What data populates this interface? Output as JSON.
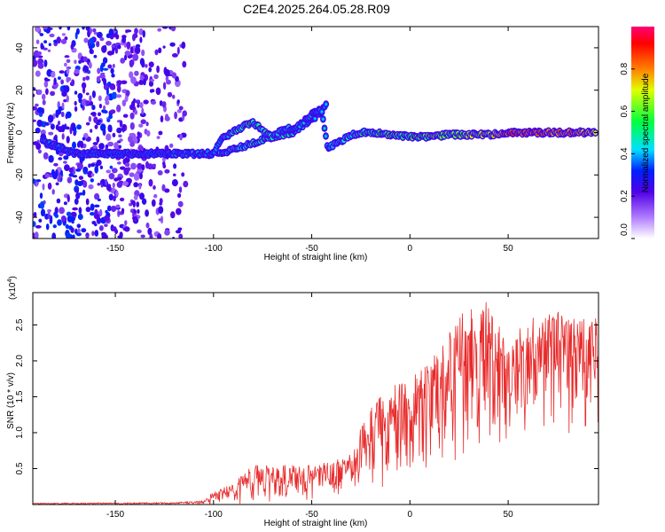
{
  "title": "C2E4.2025.264.05.28.R09",
  "chart_data": [
    {
      "type": "heatmap",
      "xlabel": "Height of straight line (km)",
      "ylabel": "Frequency (Hz)",
      "xlim": [
        -192,
        96
      ],
      "ylim": [
        -50,
        50
      ],
      "xticks": [
        -150,
        -100,
        -50,
        0,
        50
      ],
      "yticks": [
        -40,
        -20,
        0,
        20,
        40
      ],
      "colorbar": {
        "label": "Normalized spectral amplitude",
        "range": [
          0,
          1
        ],
        "ticks": [
          "0.0",
          "0.2",
          "0.4",
          "0.6",
          "0.8"
        ],
        "tick_values": [
          0,
          0.2,
          0.4,
          0.6,
          0.8
        ]
      },
      "ridge": {
        "x": [
          -187,
          -170,
          -160,
          -150,
          -140,
          -130,
          -120,
          -110,
          -100,
          -95,
          -90,
          -85,
          -80,
          -75,
          -70,
          -65,
          -60,
          -55,
          -50,
          -45,
          -42,
          -35,
          -30,
          -25,
          -20,
          -10,
          0,
          10,
          20,
          30,
          40,
          50,
          60,
          70,
          80,
          95
        ],
        "y": [
          -4,
          -10,
          -10,
          -10,
          -10,
          -10,
          -10,
          -10,
          -10,
          -2,
          0,
          3,
          5,
          1,
          -2,
          1,
          2,
          4,
          9,
          11,
          -7,
          -4,
          -1,
          0,
          0,
          -1,
          -2,
          -2,
          -1,
          -1,
          -1,
          0,
          0,
          0,
          0,
          0
        ],
        "amplitude": [
          0.45,
          0.35,
          0.35,
          0.35,
          0.3,
          0.3,
          0.4,
          0.45,
          0.4,
          0.5,
          0.55,
          0.6,
          0.6,
          0.55,
          0.55,
          0.55,
          0.5,
          0.5,
          0.45,
          0.45,
          0.45,
          0.5,
          0.55,
          0.6,
          0.6,
          0.65,
          0.65,
          0.7,
          0.7,
          0.75,
          0.8,
          0.95,
          0.95,
          0.95,
          0.9,
          0.85
        ]
      },
      "secondary_branch": {
        "x": [
          -98,
          -90,
          -80,
          -70,
          -60,
          -55,
          -50,
          -45,
          -42
        ],
        "y": [
          -10,
          -8,
          -5,
          -2,
          0,
          3,
          6,
          10,
          15
        ],
        "amplitude": [
          0.5,
          0.5,
          0.55,
          0.6,
          0.55,
          0.5,
          0.45,
          0.45,
          0.4
        ]
      }
    },
    {
      "type": "line",
      "xlabel": "Height of straight line (km)",
      "ylabel": "SNR (10 * v/v)",
      "multiplier_label": "(x10",
      "multiplier_exp": "4",
      "multiplier_close": ")",
      "xlim": [
        -192,
        96
      ],
      "ylim": [
        0,
        2.95
      ],
      "xticks": [
        -150,
        -100,
        -50,
        0,
        50
      ],
      "yticks": [
        0.5,
        1.0,
        1.5,
        2.0,
        2.5
      ],
      "ytick_labels": [
        "0.5",
        "1.0",
        "1.5",
        "2.0",
        "2.5"
      ],
      "color": "#e82a2a",
      "envelope": {
        "x": [
          -192,
          -120,
          -105,
          -100,
          -90,
          -80,
          -70,
          -60,
          -50,
          -40,
          -30,
          -22,
          -15,
          -10,
          -5,
          0,
          10,
          20,
          30,
          40,
          50,
          60,
          70,
          80,
          90,
          96
        ],
        "upper": [
          0.02,
          0.03,
          0.05,
          0.18,
          0.3,
          0.55,
          0.55,
          0.55,
          0.55,
          0.6,
          0.7,
          1.3,
          1.5,
          1.65,
          1.7,
          1.8,
          2.0,
          2.4,
          2.8,
          2.9,
          2.3,
          2.6,
          2.7,
          2.7,
          2.6,
          2.6
        ],
        "lower": [
          0.0,
          0.0,
          0.0,
          0.0,
          0.0,
          0.0,
          0.0,
          0.02,
          0.05,
          0.1,
          0.15,
          0.2,
          0.2,
          0.3,
          0.4,
          0.3,
          0.3,
          0.5,
          0.6,
          0.6,
          0.8,
          0.9,
          1.0,
          0.9,
          0.8,
          1.0
        ]
      }
    }
  ]
}
